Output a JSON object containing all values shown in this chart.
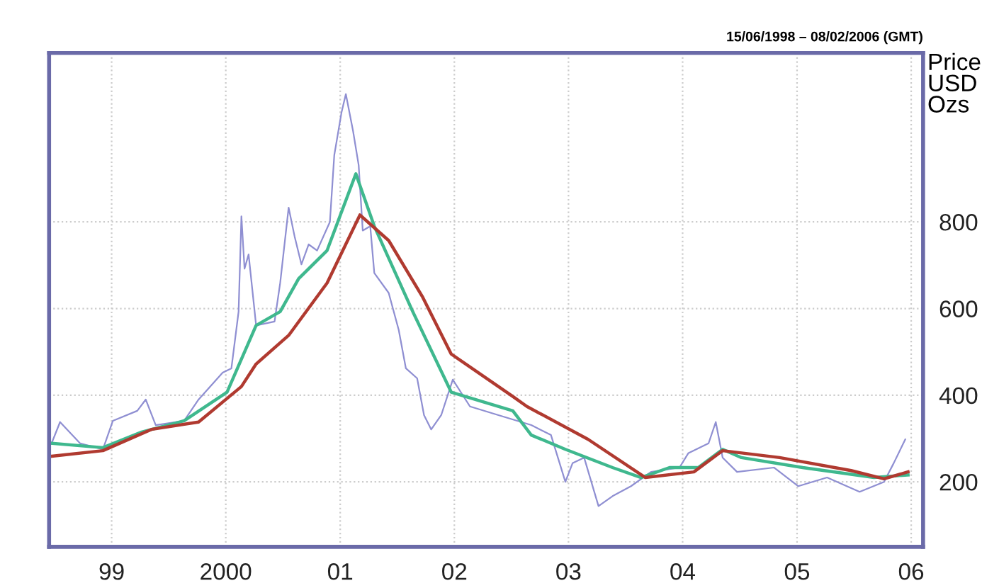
{
  "chart_data": {
    "type": "line",
    "ylabel": "Price\nUSD\nOzs",
    "annotations": [
      "15/06/1998 – 08/02/2006 (GMT)"
    ],
    "xlim": [
      "1998-06-15",
      "2006-02-08"
    ],
    "xticks": [
      {
        "value": "1999-01-01",
        "label": "99"
      },
      {
        "value": "2000-01-01",
        "label": "2000"
      },
      {
        "value": "2001-01-01",
        "label": "01"
      },
      {
        "value": "2002-01-01",
        "label": "02"
      },
      {
        "value": "2003-01-01",
        "label": "03"
      },
      {
        "value": "2004-01-01",
        "label": "04"
      },
      {
        "value": "2005-01-01",
        "label": "05"
      },
      {
        "value": "2006-01-01",
        "label": "06"
      }
    ],
    "ylim": [
      50,
      1190
    ],
    "yticks": [
      200,
      400,
      600,
      800
    ],
    "grid": true,
    "line_style": "solid",
    "series": [
      {
        "color": "#8f8fd2",
        "x": [
          "1998-06-23",
          "1998-07-20",
          "1998-09-22",
          "1998-12-04",
          "1999-01-05",
          "1999-03-24",
          "1999-04-20",
          "1999-05-22",
          "1999-08-21",
          "1999-10-06",
          "1999-12-22",
          "2000-01-19",
          "2000-02-11",
          "2000-02-20",
          "2000-03-01",
          "2000-03-14",
          "2000-04-07",
          "2000-06-05",
          "2000-06-23",
          "2000-07-20",
          "2000-08-08",
          "2000-08-30",
          "2000-09-22",
          "2000-10-19",
          "2000-11-29",
          "2000-12-13",
          "2001-01-05",
          "2001-01-19",
          "2001-02-11",
          "2001-03-01",
          "2001-03-14",
          "2001-04-07",
          "2001-04-20",
          "2001-06-05",
          "2001-07-07",
          "2001-07-30",
          "2001-09-04",
          "2001-09-26",
          "2001-10-19",
          "2001-11-20",
          "2001-12-27",
          "2002-02-20",
          "2002-05-22",
          "2002-09-04",
          "2002-11-06",
          "2002-12-22",
          "2003-01-14",
          "2003-02-20",
          "2003-04-07",
          "2003-05-22",
          "2003-07-20",
          "2003-09-22",
          "2003-12-22",
          "2004-01-19",
          "2004-03-24",
          "2004-04-16",
          "2004-05-08",
          "2004-06-23",
          "2004-10-19",
          "2005-01-05",
          "2005-04-07",
          "2005-07-20",
          "2005-10-06",
          "2005-11-06",
          "2005-12-13"
        ],
        "values": [
          289,
          338,
          289,
          275,
          341,
          364,
          390,
          331,
          341,
          390,
          452,
          462,
          593,
          813,
          692,
          725,
          561,
          570,
          659,
          833,
          767,
          702,
          748,
          734,
          800,
          954,
          1052,
          1095,
          1010,
          931,
          780,
          790,
          682,
          636,
          551,
          462,
          439,
          354,
          321,
          354,
          436,
          374,
          354,
          331,
          308,
          200,
          243,
          256,
          144,
          167,
          190,
          223,
          233,
          266,
          289,
          338,
          256,
          223,
          233,
          190,
          210,
          177,
          200,
          243,
          298
        ]
      },
      {
        "color": "#3fb88e",
        "x": [
          "1998-06-23",
          "1998-12-04",
          "1999-04-07",
          "1999-08-21",
          "2000-01-05",
          "2000-04-07",
          "2000-06-23",
          "2000-08-21",
          "2000-11-20",
          "2001-02-20",
          "2001-04-20",
          "2001-08-21",
          "2001-12-22",
          "2002-07-07",
          "2002-09-04",
          "2002-12-22",
          "2003-05-22",
          "2003-08-21",
          "2003-11-20",
          "2004-02-20",
          "2004-05-08",
          "2004-07-07",
          "2005-01-19",
          "2005-09-04",
          "2005-12-22"
        ],
        "values": [
          289,
          279,
          315,
          341,
          407,
          561,
          593,
          669,
          734,
          911,
          790,
          593,
          407,
          364,
          308,
          275,
          233,
          210,
          233,
          233,
          275,
          256,
          233,
          210,
          216
        ]
      },
      {
        "color": "#b03a30",
        "x": [
          "1998-06-23",
          "1998-12-04",
          "1999-05-08",
          "1999-10-06",
          "2000-02-20",
          "2000-04-07",
          "2000-07-20",
          "2000-11-20",
          "2001-03-05",
          "2001-06-05",
          "2001-09-22",
          "2001-12-22",
          "2002-07-07",
          "2002-08-21",
          "2003-03-05",
          "2003-09-04",
          "2004-02-06",
          "2004-05-08",
          "2004-11-06",
          "2005-06-23",
          "2005-10-06",
          "2005-12-22"
        ],
        "values": [
          259,
          272,
          321,
          338,
          420,
          472,
          538,
          659,
          816,
          757,
          626,
          495,
          397,
          374,
          298,
          210,
          223,
          272,
          256,
          226,
          207,
          223
        ]
      }
    ]
  }
}
